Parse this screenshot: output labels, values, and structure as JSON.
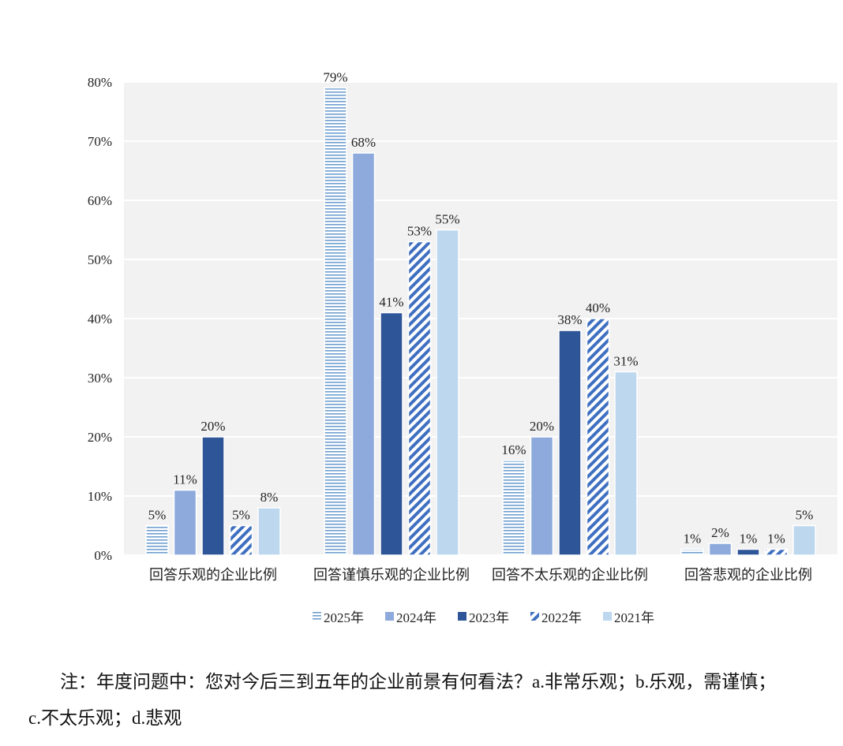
{
  "chart_data": {
    "type": "bar",
    "categories": [
      "回答乐观的企业比例",
      "回答谨慎乐观的企业比例",
      "回答不太乐观的企业比例",
      "回答悲观的企业比例"
    ],
    "series": [
      {
        "name": "2025年",
        "values": [
          5,
          79,
          16,
          1
        ],
        "labels": [
          "5%",
          "79%",
          "16%",
          "1%"
        ],
        "color": "#6f9fd0",
        "pattern": "horizontal-lines"
      },
      {
        "name": "2024年",
        "values": [
          11,
          68,
          20,
          2
        ],
        "labels": [
          "11%",
          "68%",
          "20%",
          "2%"
        ],
        "color": "#8eaadc",
        "pattern": "solid"
      },
      {
        "name": "2023年",
        "values": [
          20,
          41,
          38,
          1
        ],
        "labels": [
          "20%",
          "41%",
          "38%",
          "1%"
        ],
        "color": "#2e5597",
        "pattern": "solid"
      },
      {
        "name": "2022年",
        "values": [
          5,
          53,
          40,
          1
        ],
        "labels": [
          "5%",
          "53%",
          "40%",
          "1%"
        ],
        "color": "#3f6fc0",
        "pattern": "diagonal-stripes"
      },
      {
        "name": "2021年",
        "values": [
          8,
          55,
          31,
          5
        ],
        "labels": [
          "8%",
          "55%",
          "31%",
          "5%"
        ],
        "color": "#bdd7ee",
        "pattern": "solid"
      }
    ],
    "y_ticks": [
      "0%",
      "10%",
      "20%",
      "30%",
      "40%",
      "50%",
      "60%",
      "70%",
      "80%"
    ],
    "ylim": [
      0,
      80
    ],
    "grid": true,
    "legend_position": "bottom",
    "plot_background": "#f2f2f2"
  },
  "note": {
    "text": "注：年度问题中：您对今后三到五年的企业前景有何看法？a.非常乐观；b.乐观，需谨慎；c.不太乐观；d.悲观"
  }
}
